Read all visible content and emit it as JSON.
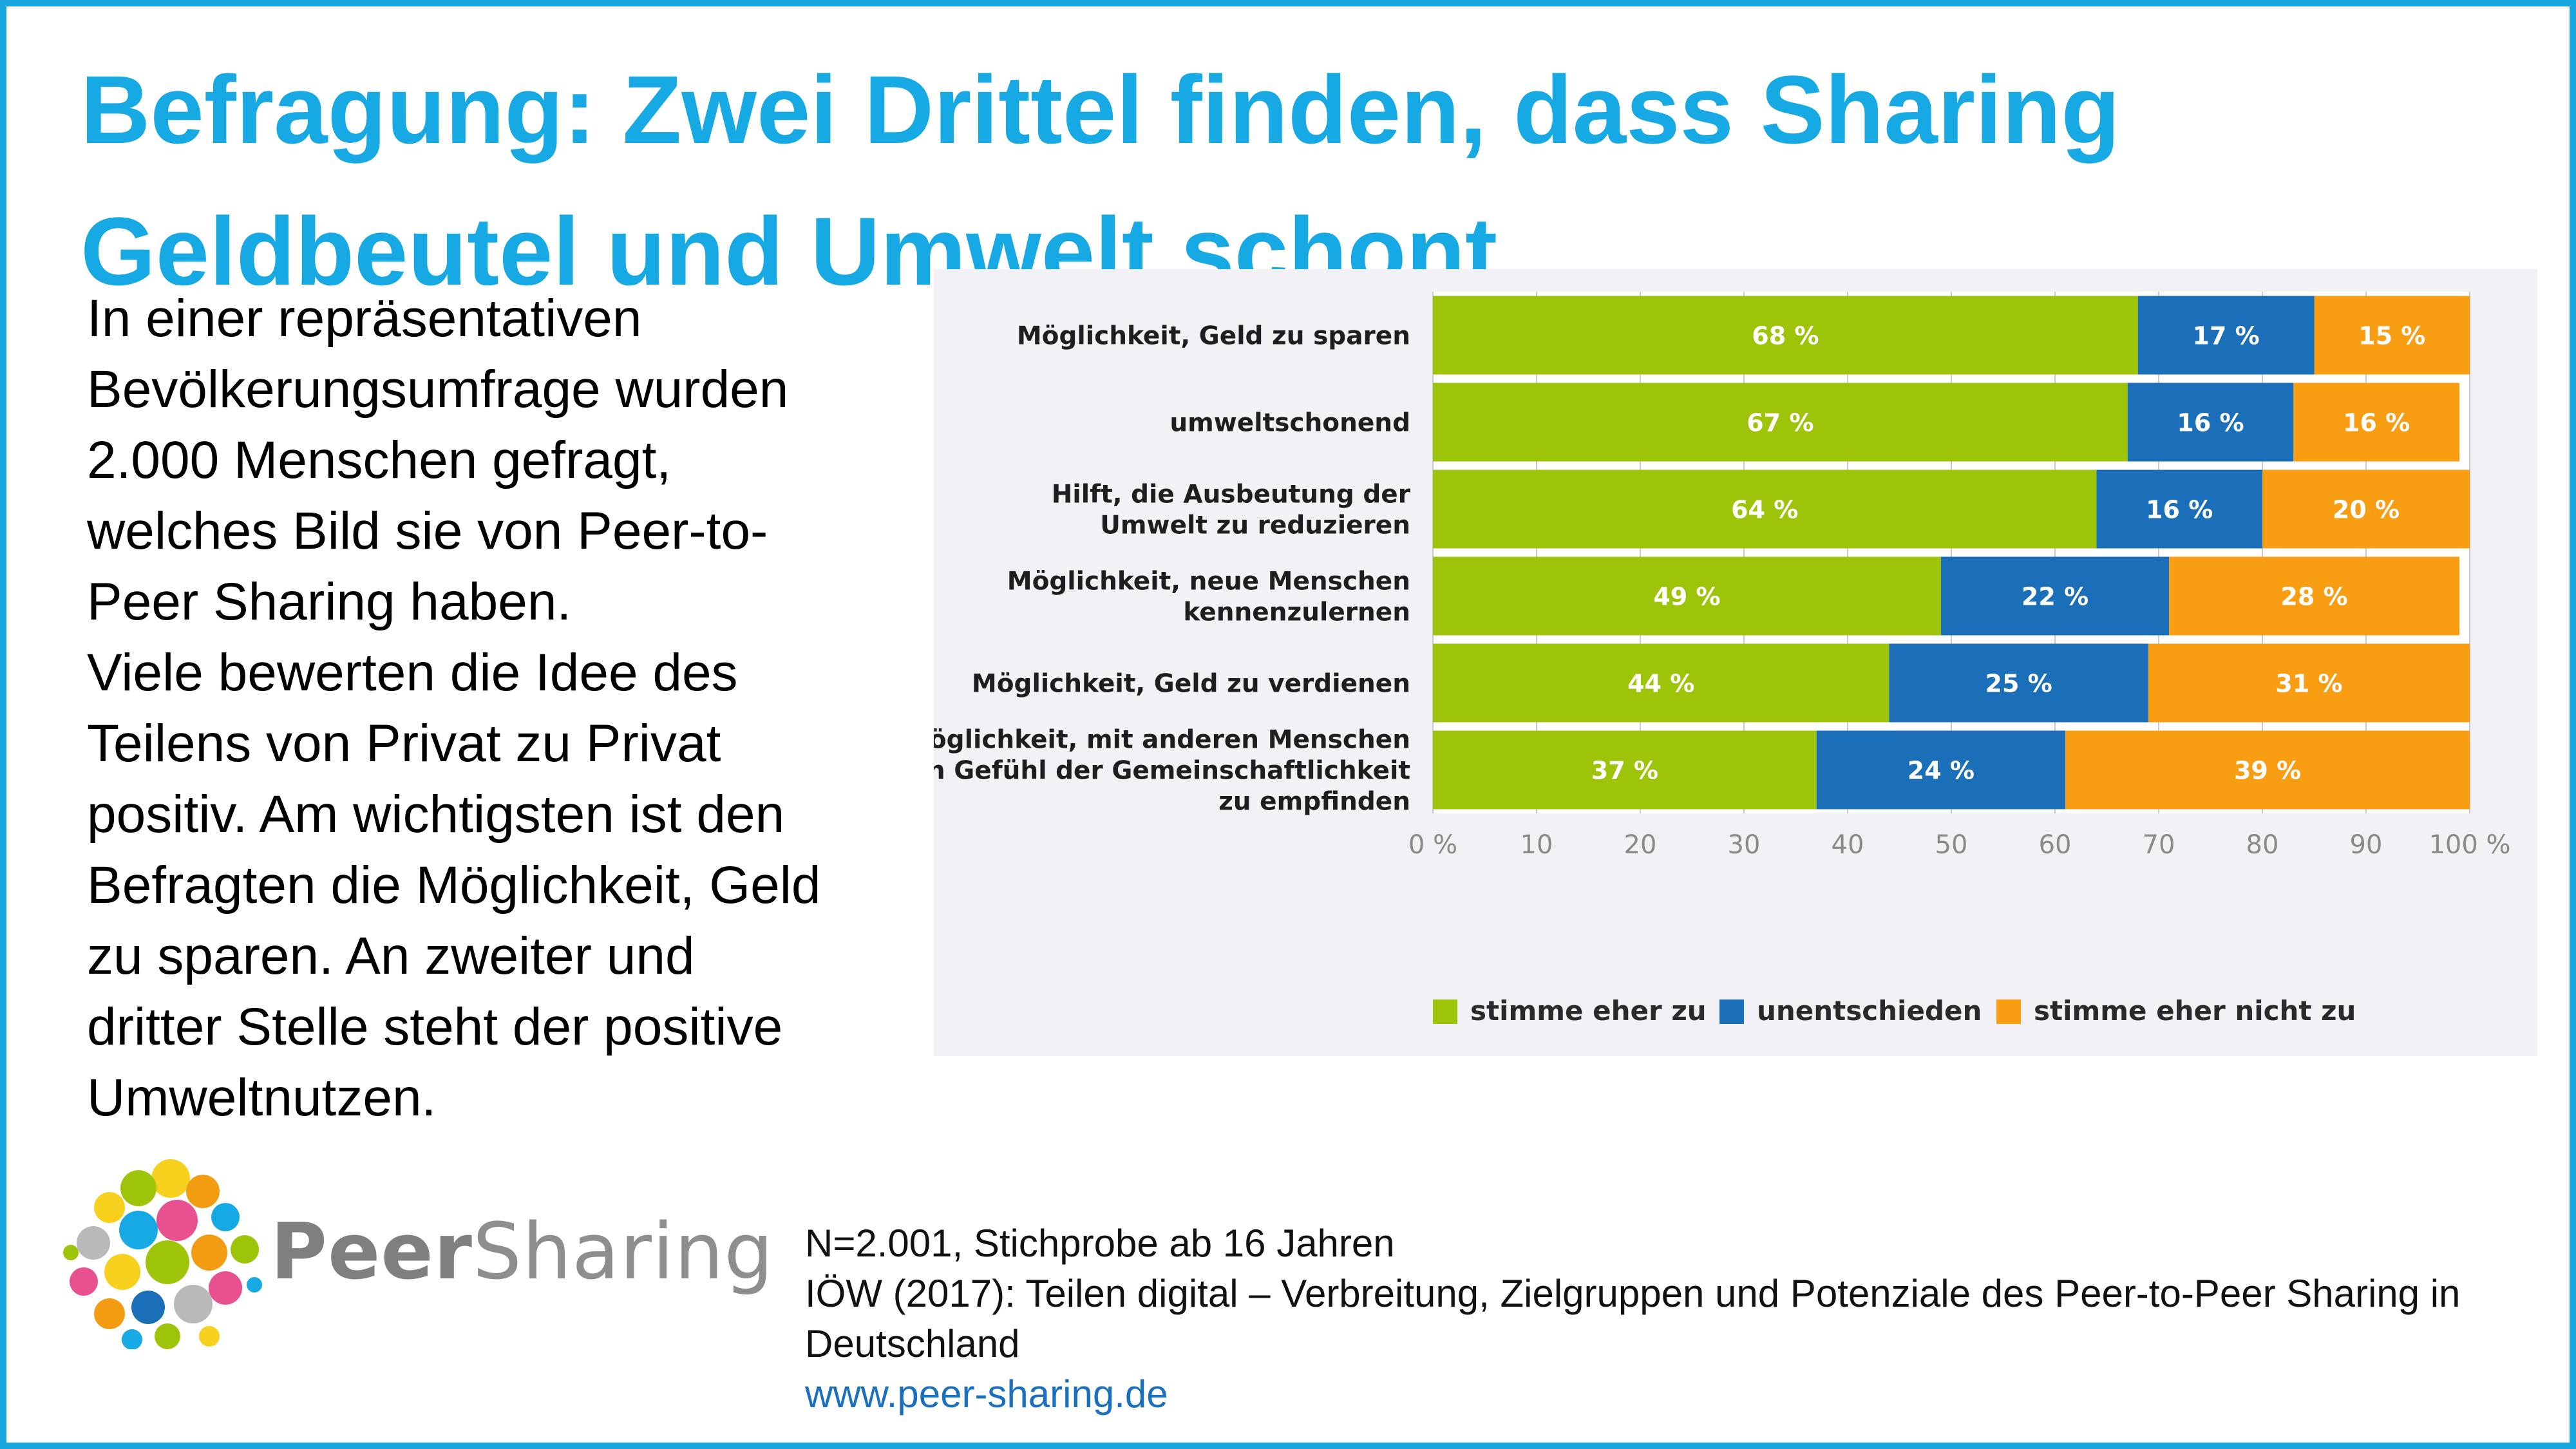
{
  "title": "Befragung: Zwei Drittel finden, dass Sharing\nGeldbeutel und Umwelt schont",
  "body_text": "In einer repräsentativen\nBevölkerungsumfrage wurden\n2.000 Menschen gefragt,\nwelches Bild sie von Peer-to-\nPeer Sharing haben.\nViele bewerten die Idee des\nTeilens von Privat zu Privat\npositiv. Am wichtigsten ist den\nBefragten die Möglichkeit, Geld\nzu sparen. An zweiter und\ndritter Stelle steht der positive\nUmweltnutzen.",
  "logo": {
    "peer": "Peer",
    "sharing": "Sharing"
  },
  "source": {
    "sample": "N=2.001, Stichprobe ab 16 Jahren",
    "citation": "IÖW (2017): Teilen digital – Verbreitung, Zielgruppen und Potenziale des Peer-to-Peer Sharing in Deutschland",
    "url": "www.peer-sharing.de"
  },
  "colors": {
    "accent": "#17a9e4",
    "green": "#9ec40a",
    "blue": "#1a6fb8",
    "orange": "#f99d12"
  },
  "chart_data": {
    "type": "bar",
    "orientation": "horizontal",
    "stacked": true,
    "categories": [
      [
        "Möglichkeit, Geld zu sparen"
      ],
      [
        "umweltschonend"
      ],
      [
        "Hilft, die Ausbeutung der",
        "Umwelt zu reduzieren"
      ],
      [
        "Möglichkeit, neue Menschen",
        "kennenzulernen"
      ],
      [
        "Möglichkeit, Geld zu verdienen"
      ],
      [
        "Möglichkeit, mit anderen Menschen",
        "ein Gefühl der Gemeinschaftlichkeit",
        "zu empfinden"
      ]
    ],
    "series": [
      {
        "name": "stimme eher zu",
        "color": "#9ec40a",
        "values": [
          68,
          67,
          64,
          49,
          44,
          37
        ]
      },
      {
        "name": "unentschieden",
        "color": "#1a6fb8",
        "values": [
          17,
          16,
          16,
          22,
          25,
          24
        ]
      },
      {
        "name": "stimme eher nicht zu",
        "color": "#f99d12",
        "values": [
          15,
          16,
          20,
          28,
          31,
          39
        ]
      }
    ],
    "value_labels": [
      [
        "68 %",
        "67 %",
        "64 %",
        "49 %",
        "44 %",
        "37 %"
      ],
      [
        "17 %",
        "16 %",
        "16 %",
        "22 %",
        "25 %",
        "24 %"
      ],
      [
        "15 %",
        "16 %",
        "20 %",
        "28 %",
        "31 %",
        "39 %"
      ]
    ],
    "tick_labels": [
      "0 %",
      "10",
      "20",
      "30",
      "40",
      "50",
      "60",
      "70",
      "80",
      "90",
      "100 %"
    ],
    "xlim": [
      0,
      100
    ],
    "grid": true,
    "legend_position": "bottom"
  }
}
